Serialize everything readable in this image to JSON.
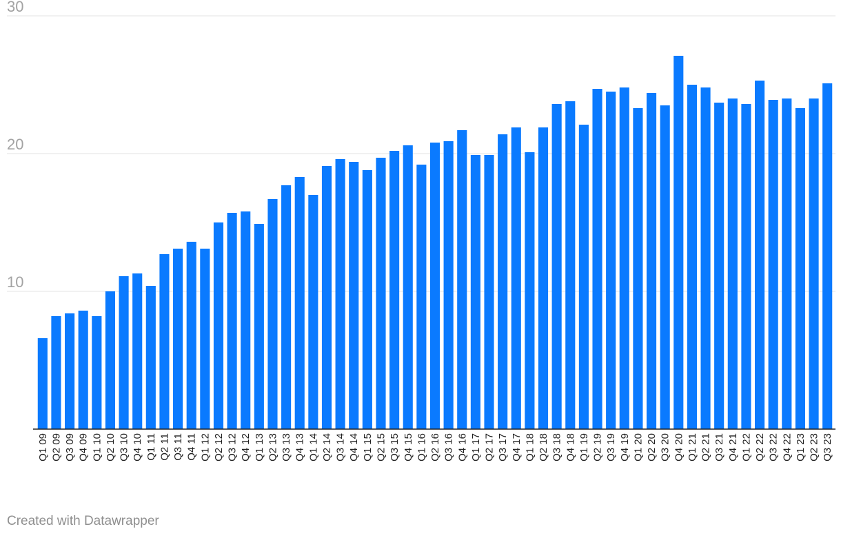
{
  "chart_data": {
    "type": "bar",
    "categories": [
      "Q1 09",
      "Q2 09",
      "Q3 09",
      "Q4 09",
      "Q1 10",
      "Q2 10",
      "Q3 10",
      "Q4 10",
      "Q1 11",
      "Q2 11",
      "Q3 11",
      "Q4 11",
      "Q1 12",
      "Q2 12",
      "Q3 12",
      "Q4 12",
      "Q1 13",
      "Q2 13",
      "Q3 13",
      "Q4 13",
      "Q1 14",
      "Q2 14",
      "Q3 14",
      "Q4 14",
      "Q1 15",
      "Q2 15",
      "Q3 15",
      "Q4 15",
      "Q1 16",
      "Q2 16",
      "Q3 16",
      "Q4 16",
      "Q1 17",
      "Q2 17",
      "Q3 17",
      "Q4 17",
      "Q1 18",
      "Q2 18",
      "Q3 18",
      "Q4 18",
      "Q1 19",
      "Q2 19",
      "Q3 19",
      "Q4 19",
      "Q1 20",
      "Q2 20",
      "Q3 20",
      "Q4 20",
      "Q1 21",
      "Q2 21",
      "Q3 21",
      "Q4 21",
      "Q1 22",
      "Q2 22",
      "Q3 22",
      "Q4 22",
      "Q1 23",
      "Q2 23",
      "Q3 23"
    ],
    "values": [
      6.6,
      8.2,
      8.4,
      8.6,
      8.2,
      10.0,
      11.1,
      11.3,
      10.4,
      12.7,
      13.1,
      13.6,
      13.1,
      15.0,
      15.7,
      15.8,
      14.9,
      16.7,
      17.7,
      18.3,
      17.0,
      19.1,
      19.6,
      19.4,
      18.8,
      19.7,
      20.2,
      20.6,
      19.2,
      20.8,
      20.9,
      21.7,
      19.9,
      19.9,
      21.4,
      21.9,
      20.1,
      21.9,
      23.6,
      23.8,
      22.1,
      24.7,
      24.5,
      24.8,
      23.3,
      24.4,
      23.5,
      27.1,
      25.0,
      24.8,
      23.7,
      24.0,
      23.6,
      25.3,
      23.9,
      24.0,
      23.3,
      24.0,
      25.1
    ],
    "yticks": [
      "10",
      "20",
      "30"
    ],
    "ylim": [
      0,
      30
    ],
    "grid": true,
    "bar_color": "#0a7aff"
  },
  "footer": {
    "credit": "Created with Datawrapper"
  }
}
